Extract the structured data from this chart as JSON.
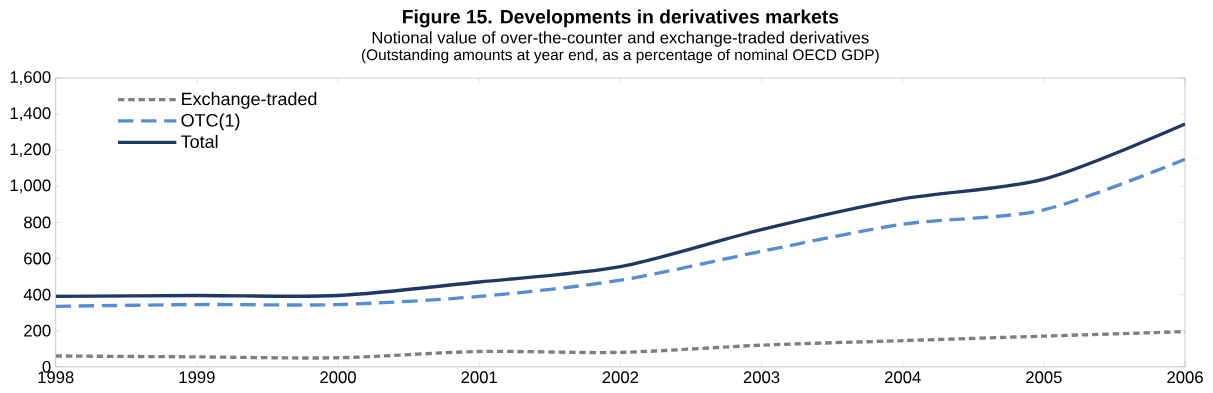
{
  "chart_data": {
    "type": "line",
    "title": "Figure 15.  Developments in derivatives markets",
    "subtitle": "Notional value of over-the-counter and exchange-traded derivatives",
    "annotations": [
      "(Outstanding amounts at year end, as a percentage of nominal OECD GDP)"
    ],
    "x": [
      1998,
      1999,
      2000,
      2001,
      2002,
      2003,
      2004,
      2005,
      2006
    ],
    "series": [
      {
        "name": "Exchange-traded",
        "color": "#7f7f7f",
        "line_style": "dotted",
        "values": [
          60,
          55,
          50,
          85,
          80,
          120,
          145,
          170,
          195
        ]
      },
      {
        "name": "OTC(1)",
        "color": "#558ed5",
        "line_style": "dashed",
        "values": [
          335,
          345,
          345,
          390,
          480,
          640,
          790,
          870,
          1150
        ]
      },
      {
        "name": "Total",
        "color": "#1f3864",
        "line_style": "solid",
        "values": [
          390,
          395,
          395,
          470,
          555,
          760,
          930,
          1040,
          1345
        ]
      }
    ],
    "xlim": [
      1998,
      2006
    ],
    "xticks": [
      1998,
      1999,
      2000,
      2001,
      2002,
      2003,
      2004,
      2005,
      2006
    ],
    "ylim": [
      0,
      1600
    ],
    "yticks": [
      0,
      {
        "value": 200,
        "label": "200"
      },
      {
        "value": 400,
        "label": "400"
      },
      {
        "value": 600,
        "label": "600"
      },
      {
        "value": 800,
        "label": "800"
      },
      {
        "value": 1000,
        "label": "1,000"
      },
      {
        "value": 1200,
        "label": "1,200"
      },
      {
        "value": 1400,
        "label": "1,400"
      },
      {
        "value": 1600,
        "label": "1,600"
      }
    ],
    "grid": false,
    "legend": "top left",
    "marker": "none"
  }
}
